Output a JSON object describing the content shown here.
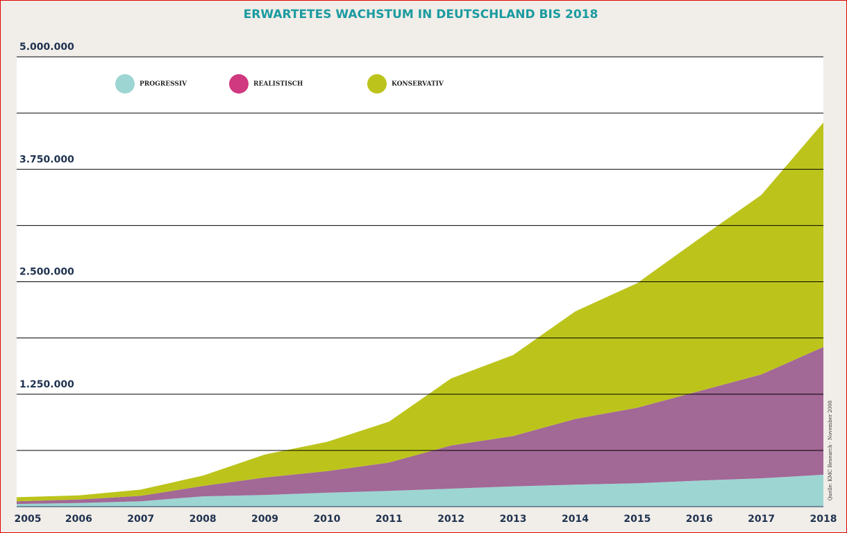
{
  "chart_data": {
    "type": "stacked_area",
    "title": "ERWARTETES WACHSTUM IN DEUTSCHLAND BIS 2018",
    "source": "Quelle: KMC Research · November 2008",
    "categories": [
      "2005",
      "2006",
      "2007",
      "2008",
      "2009",
      "2010",
      "2011",
      "2012",
      "2013",
      "2014",
      "2015",
      "2016",
      "2017",
      "2018"
    ],
    "series": [
      {
        "name": "PROGRESSIV",
        "color": "#9dd5d3",
        "legend_color": "#9dd5d3",
        "values": [
          30000,
          40000,
          60000,
          115000,
          130000,
          155000,
          175000,
          200000,
          225000,
          245000,
          260000,
          290000,
          315000,
          355000
        ]
      },
      {
        "name": "REALISTISCH",
        "color": "#a26896",
        "legend_color": "#d0387f",
        "values": [
          30000,
          40000,
          60000,
          115000,
          195000,
          240000,
          315000,
          480000,
          560000,
          730000,
          840000,
          995000,
          1155000,
          1420000
        ]
      },
      {
        "name": "KONSERVATIV",
        "color": "#bcc41c",
        "legend_color": "#bcc41c",
        "values": [
          45000,
          45000,
          70000,
          115000,
          255000,
          325000,
          455000,
          745000,
          900000,
          1195000,
          1385000,
          1695000,
          1995000,
          2495000
        ]
      }
    ],
    "ylim": [
      0,
      5000000
    ],
    "yticks": [
      {
        "value": 1250000,
        "label": "1.250.000"
      },
      {
        "value": 2500000,
        "label": "2.500.000"
      },
      {
        "value": 3750000,
        "label": "3.750.000"
      },
      {
        "value": 5000000,
        "label": "5.000.000"
      }
    ],
    "minor_gridlines": [
      625000,
      1875000,
      3125000,
      4375000
    ],
    "grid": true,
    "legend": "top-left"
  }
}
